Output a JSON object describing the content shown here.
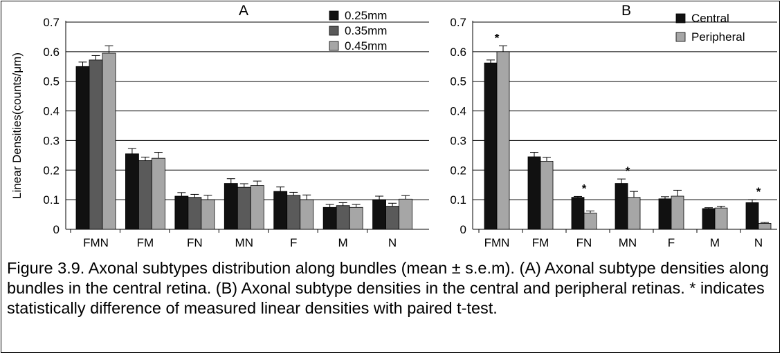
{
  "shared": {
    "categories": [
      "FMN",
      "FM",
      "FN",
      "MN",
      "F",
      "M",
      "N"
    ],
    "yticks": [
      "0",
      "0.1",
      "0.2",
      "0.3",
      "0.4",
      "0.5",
      "0.6",
      "0.7"
    ],
    "ylabel": "Linear Densities(counts/μm)"
  },
  "caption": "Figure 3.9. Axonal subtypes distribution along bundles (mean ± s.e.m). (A) Axonal subtype densities along bundles in the central retina. (B) Axonal subtype densities in the central and peripheral retinas. * indicates statistically difference of measured linear densities with paired t-test.",
  "chart_data": [
    {
      "type": "bar",
      "panel_label": "A",
      "categories": [
        "FMN",
        "FM",
        "FN",
        "MN",
        "F",
        "M",
        "N"
      ],
      "ylim": [
        0,
        0.7
      ],
      "ylabel": "Linear Densities(counts/μm)",
      "legend_position": "top-right",
      "grid": true,
      "series": [
        {
          "name": "0.25mm",
          "color": "#111111",
          "values": [
            0.55,
            0.255,
            0.112,
            0.155,
            0.128,
            0.074,
            0.1
          ],
          "errors": [
            0.015,
            0.018,
            0.012,
            0.016,
            0.015,
            0.01,
            0.012
          ]
        },
        {
          "name": "0.35mm",
          "color": "#5a5a5a",
          "values": [
            0.572,
            0.232,
            0.108,
            0.142,
            0.115,
            0.08,
            0.078
          ],
          "errors": [
            0.015,
            0.012,
            0.01,
            0.012,
            0.01,
            0.01,
            0.01
          ]
        },
        {
          "name": "0.45mm",
          "color": "#a6a6a6",
          "values": [
            0.595,
            0.24,
            0.1,
            0.148,
            0.1,
            0.074,
            0.102
          ],
          "errors": [
            0.025,
            0.02,
            0.015,
            0.015,
            0.016,
            0.01,
            0.012
          ]
        }
      ],
      "significant": []
    },
    {
      "type": "bar",
      "panel_label": "B",
      "categories": [
        "FMN",
        "FM",
        "FN",
        "MN",
        "F",
        "M",
        "N"
      ],
      "ylim": [
        0,
        0.7
      ],
      "legend_position": "top-right",
      "grid": true,
      "series": [
        {
          "name": "Central",
          "color": "#111111",
          "values": [
            0.562,
            0.245,
            0.108,
            0.155,
            0.103,
            0.07,
            0.09
          ],
          "errors": [
            0.01,
            0.015,
            0.003,
            0.015,
            0.007,
            0.003,
            0.01
          ]
        },
        {
          "name": "Peripheral",
          "color": "#a6a6a6",
          "values": [
            0.6,
            0.23,
            0.055,
            0.108,
            0.112,
            0.072,
            0.02
          ],
          "errors": [
            0.02,
            0.013,
            0.007,
            0.02,
            0.02,
            0.006,
            0.003
          ]
        }
      ],
      "significant": [
        {
          "category": "FMN",
          "mark": "*"
        },
        {
          "category": "FN",
          "mark": "*"
        },
        {
          "category": "MN",
          "mark": "*"
        },
        {
          "category": "N",
          "mark": "*"
        }
      ]
    }
  ]
}
